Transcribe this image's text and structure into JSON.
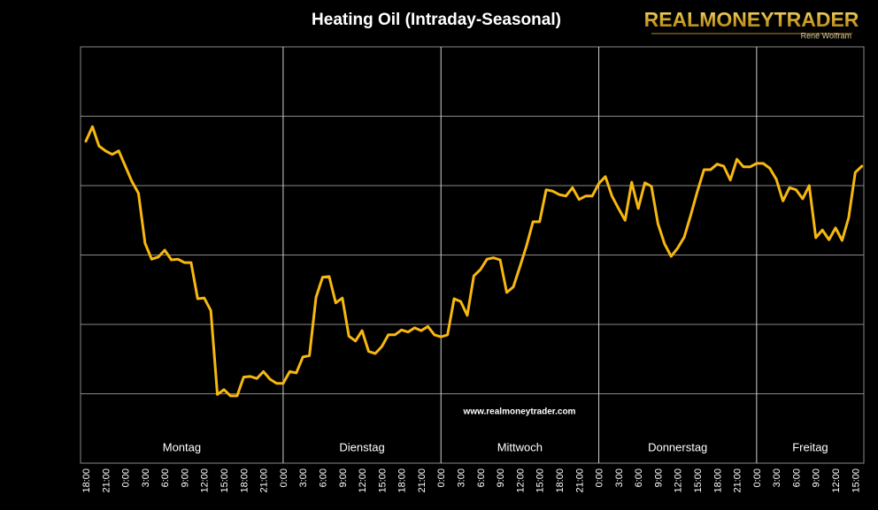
{
  "chart_data": {
    "type": "line",
    "title": "Heating Oil (Intraday-Seasonal)",
    "logo": "REALMONEYTRADER",
    "logo_author": "René Wolfram",
    "watermark": "www.realmoneytrader.com",
    "days": [
      "Montag",
      "Dienstag",
      "Mittwoch",
      "Donnerstag",
      "Freitag"
    ],
    "categories": [
      "18:00",
      null,
      null,
      "21:00",
      null,
      null,
      "0:00",
      null,
      null,
      "3:00",
      null,
      null,
      "6:00",
      null,
      null,
      "9:00",
      null,
      null,
      "12:00",
      null,
      null,
      "15:00",
      null,
      null,
      "18:00",
      null,
      null,
      "21:00",
      null,
      null,
      "0:00",
      null,
      null,
      "3:00",
      null,
      null,
      "6:00",
      null,
      null,
      "9:00",
      null,
      null,
      "12:00",
      null,
      null,
      "15:00",
      null,
      null,
      "18:00",
      null,
      null,
      "21:00",
      null,
      null,
      "0:00",
      null,
      null,
      "3:00",
      null,
      null,
      "6:00",
      null,
      null,
      "9:00",
      null,
      null,
      "12:00",
      null,
      null,
      "15:00",
      null,
      null,
      "18:00",
      null,
      null,
      "21:00",
      null,
      null,
      "0:00",
      null,
      null,
      "3:00",
      null,
      null,
      "6:00",
      null,
      null,
      "9:00",
      null,
      null,
      "12:00",
      null,
      null,
      "15:00",
      null,
      null,
      "18:00",
      null,
      null,
      "21:00",
      null,
      null,
      "0:00",
      null,
      null,
      "3:00",
      null,
      null,
      "6:00",
      null,
      null,
      "9:00",
      null,
      null,
      "12:00",
      null,
      null,
      "15:00",
      null
    ],
    "values": [
      4.64,
      4.85,
      4.57,
      4.5,
      4.45,
      4.5,
      4.28,
      4.06,
      3.89,
      3.17,
      2.94,
      2.97,
      3.07,
      2.93,
      2.94,
      2.89,
      2.89,
      2.37,
      2.38,
      2.2,
      0.99,
      1.06,
      0.97,
      0.97,
      1.24,
      1.25,
      1.22,
      1.32,
      1.21,
      1.15,
      1.15,
      1.32,
      1.3,
      1.53,
      1.55,
      2.39,
      2.68,
      2.69,
      2.31,
      2.38,
      1.83,
      1.76,
      1.91,
      1.61,
      1.58,
      1.68,
      1.85,
      1.85,
      1.92,
      1.89,
      1.95,
      1.91,
      1.97,
      1.85,
      1.82,
      1.85,
      2.37,
      2.33,
      2.13,
      2.7,
      2.79,
      2.94,
      2.96,
      2.93,
      2.46,
      2.54,
      2.83,
      3.13,
      3.48,
      3.48,
      3.94,
      3.92,
      3.87,
      3.85,
      3.97,
      3.8,
      3.85,
      3.85,
      4.03,
      4.13,
      3.85,
      3.67,
      3.5,
      4.05,
      3.67,
      4.04,
      3.99,
      3.45,
      3.16,
      2.98,
      3.1,
      3.26,
      3.58,
      3.92,
      4.23,
      4.23,
      4.31,
      4.28,
      4.08,
      4.38,
      4.27,
      4.27,
      4.32,
      4.32,
      4.25,
      4.09,
      3.78,
      3.97,
      3.94,
      3.81,
      4.0,
      3.25,
      3.36,
      3.22,
      3.39,
      3.21,
      3.54,
      4.19,
      4.28
    ],
    "color": "#f7b810",
    "ylim": [
      0,
      6
    ],
    "yticks": [
      1,
      2,
      3,
      4,
      5
    ],
    "grid": true
  }
}
